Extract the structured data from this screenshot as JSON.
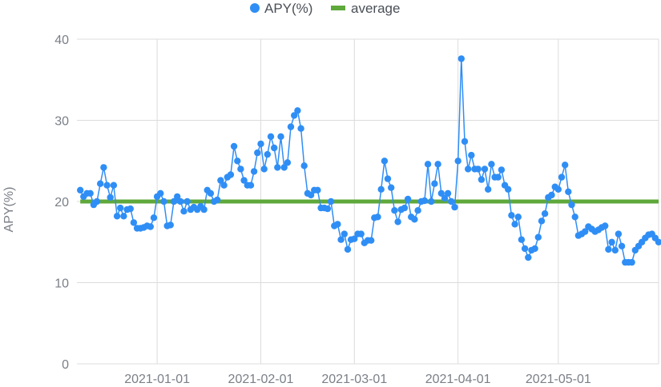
{
  "chart_data": {
    "type": "line",
    "ylabel": "APY(%)",
    "xlabel": "",
    "ylim": [
      0,
      40
    ],
    "yticks": [
      "0",
      "10",
      "20",
      "30",
      "40"
    ],
    "xlim": [
      "2020-12-08",
      "2021-05-31"
    ],
    "xticks": [
      {
        "date": "2021-01-01",
        "label": "2021-01-01"
      },
      {
        "date": "2021-02-01",
        "label": "2021-02-01"
      },
      {
        "date": "2021-03-01",
        "label": "2021-03-01"
      },
      {
        "date": "2021-04-01",
        "label": "2021-04-01"
      },
      {
        "date": "2021-05-01",
        "label": "2021-05-01"
      }
    ],
    "grid": true,
    "legend_position": "top-center",
    "series": [
      {
        "name": "APY(%)",
        "kind": "line-with-markers",
        "color": "#2f8ef5",
        "x_start": "2020-12-09",
        "x_step_days": 1,
        "values": [
          21.4,
          20.6,
          21.0,
          21.0,
          19.6,
          20.0,
          22.2,
          24.2,
          22.0,
          20.5,
          22.0,
          18.2,
          19.2,
          18.2,
          19.0,
          19.1,
          17.4,
          16.7,
          16.7,
          16.8,
          17.0,
          16.9,
          18.0,
          20.6,
          21.0,
          20.0,
          17.0,
          17.1,
          20.0,
          20.6,
          20.0,
          18.8,
          20.0,
          19.0,
          19.3,
          19.0,
          19.4,
          19.0,
          21.4,
          21.0,
          20.0,
          20.2,
          22.6,
          22.0,
          23.0,
          23.3,
          26.8,
          25.0,
          24.0,
          22.6,
          22.0,
          22.0,
          23.7,
          26.0,
          27.1,
          24.0,
          25.8,
          28.0,
          26.6,
          24.2,
          28.0,
          24.2,
          24.8,
          29.2,
          30.6,
          31.2,
          29.0,
          24.4,
          21.0,
          20.8,
          21.4,
          21.4,
          19.2,
          19.2,
          19.1,
          20.0,
          17.0,
          17.2,
          15.3,
          16.0,
          14.1,
          15.3,
          15.4,
          16.0,
          16.0,
          14.9,
          15.2,
          15.2,
          18.0,
          18.1,
          21.5,
          25.0,
          22.8,
          21.7,
          18.9,
          17.5,
          19.0,
          19.2,
          20.3,
          18.1,
          17.8,
          18.9,
          20.0,
          20.1,
          24.6,
          20.0,
          22.2,
          24.6,
          21.0,
          20.4,
          21.0,
          20.0,
          19.3,
          25.0,
          37.6,
          27.4,
          24.0,
          25.7,
          24.0,
          24.0,
          22.7,
          24.0,
          21.5,
          24.6,
          23.0,
          23.0,
          23.9,
          22.0,
          21.5,
          18.3,
          17.2,
          18.1,
          15.3,
          14.2,
          13.1,
          14.0,
          14.2,
          15.6,
          17.6,
          18.5,
          20.5,
          20.8,
          21.8,
          21.5,
          23.0,
          24.5,
          21.2,
          19.6,
          18.1,
          15.8,
          16.0,
          16.3,
          16.9,
          16.6,
          16.3,
          16.5,
          16.8,
          17.0,
          14.1,
          15.0,
          14.0,
          16.0,
          14.5,
          12.5,
          12.5,
          12.5,
          14.0,
          14.5,
          15.0,
          15.5,
          15.9,
          16.0,
          15.5,
          15.0
        ]
      },
      {
        "name": "average",
        "kind": "line",
        "color": "#5fa83b",
        "constant_value": 20.0
      }
    ]
  }
}
